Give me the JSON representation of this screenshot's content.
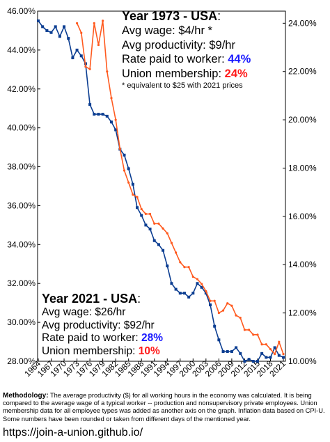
{
  "chart_data": {
    "type": "line",
    "x": [
      1964,
      1965,
      1966,
      1967,
      1968,
      1969,
      1970,
      1971,
      1972,
      1973,
      1974,
      1975,
      1976,
      1977,
      1978,
      1979,
      1980,
      1981,
      1982,
      1983,
      1984,
      1985,
      1986,
      1987,
      1988,
      1989,
      1990,
      1991,
      1992,
      1993,
      1994,
      1995,
      1996,
      1997,
      1998,
      1999,
      2000,
      2001,
      2002,
      2003,
      2004,
      2005,
      2006,
      2007,
      2008,
      2009,
      2010,
      2011,
      2012,
      2013,
      2014,
      2015,
      2016,
      2017,
      2018,
      2019,
      2020,
      2021
    ],
    "x_ticks": [
      "1964",
      "1967",
      "1970",
      "1973",
      "1976",
      "1979",
      "1982",
      "1985",
      "1988",
      "1991",
      "1994",
      "1997",
      "2000",
      "2003",
      "2006",
      "2009",
      "2012",
      "2015",
      "2018",
      "2021"
    ],
    "y_ticks_left": [
      "28.00%",
      "30.00%",
      "32.00%",
      "34.00%",
      "36.00%",
      "38.00%",
      "40.00%",
      "42.00%",
      "44.00%",
      "46.00%"
    ],
    "y_ticks_right": [
      "10.00%",
      "12.00%",
      "14.00%",
      "16.00%",
      "18.00%",
      "20.00%",
      "22.00%",
      "24.00%"
    ],
    "ylim_left": [
      28,
      46
    ],
    "ylim_right": [
      10,
      24.5
    ],
    "grid": false,
    "series": [
      {
        "color": "#0b3d91",
        "axis": "left",
        "values": [
          45.5,
          45.2,
          45.0,
          44.9,
          45.2,
          44.7,
          45.2,
          44.6,
          43.6,
          44.0,
          43.7,
          43.3,
          41.2,
          40.7,
          40.7,
          40.7,
          40.6,
          40.3,
          39.9,
          38.9,
          38.6,
          37.9,
          37.1,
          35.9,
          35.5,
          35.0,
          34.8,
          34.2,
          34.0,
          33.7,
          32.9,
          32.0,
          31.7,
          31.5,
          31.5,
          31.3,
          31.5,
          32.0,
          31.8,
          31.5,
          30.9,
          29.8,
          29.1,
          28.5,
          28.5,
          28.5,
          28.7,
          28.4,
          28.0,
          28.1,
          28.0,
          28.0,
          28.4,
          28.2,
          28.2,
          28.7,
          28.3,
          28.2
        ]
      },
      {
        "color": "#ff5a1f",
        "axis": "right",
        "values": [
          null,
          null,
          null,
          null,
          null,
          null,
          null,
          null,
          null,
          24.0,
          23.6,
          22.2,
          22.1,
          24.0,
          23.1,
          24.1,
          22.0,
          20.9,
          20.0,
          18.8,
          17.9,
          17.4,
          16.9,
          16.8,
          16.3,
          16.1,
          16.1,
          15.7,
          15.7,
          15.5,
          15.3,
          14.9,
          14.5,
          14.1,
          13.9,
          13.9,
          13.5,
          13.4,
          13.2,
          12.9,
          12.5,
          12.5,
          12.0,
          12.1,
          12.4,
          12.3,
          11.9,
          11.8,
          11.3,
          11.3,
          11.1,
          11.1,
          10.7,
          10.7,
          10.5,
          10.3,
          10.8,
          10.3
        ]
      }
    ]
  },
  "annotation_1973": {
    "title": "Year 1973 - USA",
    "colon": ":",
    "wage": "Avg wage: $4/hr *",
    "productivity": "Avg productivity: $9/hr",
    "rate_label": "Rate paid to worker: ",
    "rate_value": "44%",
    "union_label": "Union membership: ",
    "union_value": "24%",
    "footnote": "* equivalent to $25 with 2021 prices"
  },
  "annotation_2021": {
    "title": "Year 2021 - USA",
    "colon": ":",
    "wage": "Avg wage: $26/hr",
    "productivity": "Avg productivity: $92/hr",
    "rate_label": "Rate paid to worker: ",
    "rate_value": "28%",
    "union_label": "Union membership: ",
    "union_value": "10%"
  },
  "methodology": {
    "label": "Methodology:",
    "text": " The average productivity ($) for all working hours in the economy was calculated. It is being compared to the average wage of a typical worker -- production and nonsupervisory private employees. Union membership data for all employee types was added as another axis on the graph. Inflation data based on CPI-U. Some numbers have been rounded or taken from different days of the mentioned year."
  },
  "url": "https://join-a-union.github.io/",
  "colors": {
    "blue_text": "#1a1aff",
    "red_text": "#ff1a1a",
    "axis": "#000000"
  }
}
